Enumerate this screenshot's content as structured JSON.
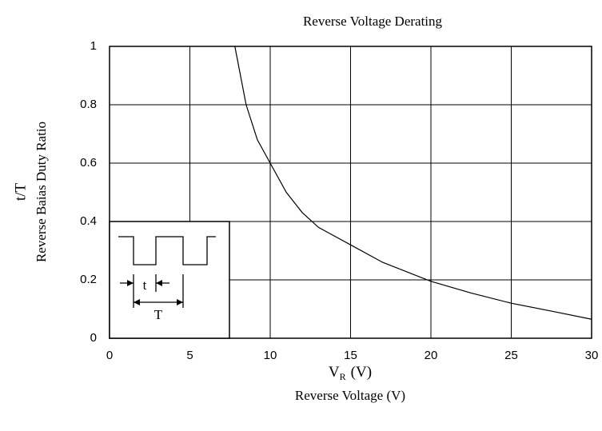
{
  "chart_data": {
    "type": "line",
    "title": "Reverse Voltage Derating",
    "ylabel_lines": [
      "t/T",
      "Reverse Baias Duty Ratio"
    ],
    "xlabel": {
      "main": "V",
      "sub": "R",
      "unit": "(V)"
    },
    "xlabel_line2": "Reverse Voltage (V)",
    "xlim": [
      0,
      30
    ],
    "xticks": [
      0,
      5,
      10,
      15,
      20,
      25,
      30
    ],
    "ylim": [
      0,
      1
    ],
    "yticks": [
      0,
      0.2,
      0.4,
      0.6,
      0.8,
      1
    ],
    "grid": true,
    "inset_labels": {
      "pulse": "t",
      "period": "T"
    },
    "series": [
      {
        "color": "#000000",
        "x": [
          7.8,
          8.5,
          9.2,
          10,
          11,
          12,
          13,
          14,
          15,
          17,
          20,
          22.5,
          25,
          27.5,
          30
        ],
        "values": [
          1,
          0.8,
          0.68,
          0.6,
          0.5,
          0.43,
          0.38,
          0.35,
          0.32,
          0.26,
          0.195,
          0.155,
          0.12,
          0.093,
          0.065
        ]
      }
    ]
  }
}
